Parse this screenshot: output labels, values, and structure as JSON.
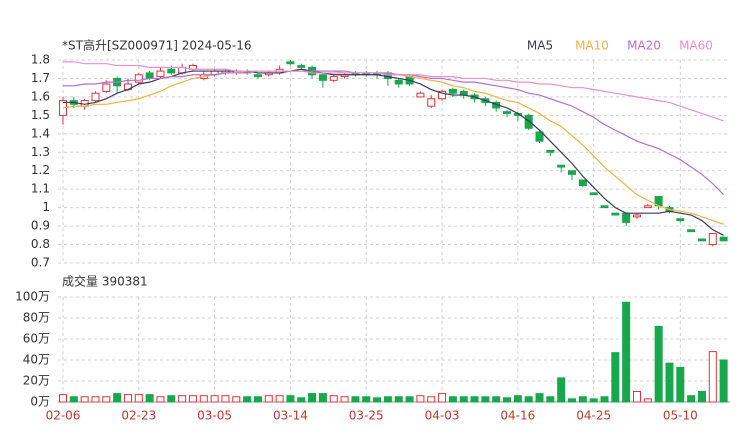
{
  "chart_data": [
    {
      "type": "candlestick",
      "title": "*ST高升[SZ000971] 2024-05-16",
      "categories": [
        "02-06",
        null,
        null,
        null,
        null,
        null,
        null,
        "02-23",
        null,
        null,
        null,
        null,
        null,
        null,
        "03-05",
        null,
        null,
        null,
        null,
        null,
        null,
        "03-14",
        null,
        null,
        null,
        null,
        null,
        null,
        "03-25",
        null,
        null,
        null,
        null,
        null,
        null,
        "04-03",
        null,
        null,
        null,
        null,
        null,
        null,
        "04-16",
        null,
        null,
        null,
        null,
        null,
        null,
        "04-25",
        null,
        null,
        null,
        null,
        null,
        null,
        null,
        "05-10",
        null,
        null,
        null,
        null
      ],
      "open": [
        1.5,
        1.58,
        1.55,
        1.58,
        1.63,
        1.7,
        1.64,
        1.68,
        1.73,
        1.71,
        1.75,
        1.73,
        1.75,
        1.7,
        1.72,
        1.73,
        1.73,
        1.74,
        1.72,
        1.72,
        1.73,
        1.79,
        1.77,
        1.76,
        1.72,
        1.69,
        1.71,
        1.73,
        1.73,
        1.73,
        1.73,
        1.69,
        1.71,
        1.6,
        1.55,
        1.59,
        1.64,
        1.63,
        1.61,
        1.59,
        1.57,
        1.52,
        1.51,
        1.5,
        1.41,
        1.31,
        1.23,
        1.2,
        1.15,
        1.08,
        1.01,
        0.97,
        0.97,
        0.95,
        1.0,
        1.06,
        1.0,
        0.94,
        0.88,
        0.83,
        0.8,
        0.84
      ],
      "high": [
        1.6,
        1.6,
        1.59,
        1.63,
        1.69,
        1.71,
        1.7,
        1.73,
        1.74,
        1.76,
        1.77,
        1.78,
        1.78,
        1.74,
        1.75,
        1.75,
        1.75,
        1.75,
        1.73,
        1.74,
        1.77,
        1.8,
        1.78,
        1.77,
        1.73,
        1.72,
        1.73,
        1.74,
        1.74,
        1.74,
        1.74,
        1.7,
        1.72,
        1.63,
        1.61,
        1.64,
        1.65,
        1.64,
        1.62,
        1.6,
        1.58,
        1.53,
        1.52,
        1.51,
        1.42,
        1.31,
        1.23,
        1.2,
        1.15,
        1.08,
        1.01,
        0.97,
        0.97,
        0.97,
        1.02,
        1.06,
        1.01,
        0.94,
        0.88,
        0.83,
        0.86,
        0.84
      ],
      "low": [
        1.45,
        1.54,
        1.53,
        1.57,
        1.62,
        1.62,
        1.63,
        1.67,
        1.69,
        1.7,
        1.72,
        1.72,
        1.74,
        1.69,
        1.71,
        1.72,
        1.72,
        1.72,
        1.7,
        1.71,
        1.72,
        1.77,
        1.75,
        1.7,
        1.65,
        1.68,
        1.7,
        1.71,
        1.71,
        1.7,
        1.66,
        1.65,
        1.66,
        1.6,
        1.54,
        1.58,
        1.6,
        1.59,
        1.57,
        1.55,
        1.52,
        1.49,
        1.47,
        1.42,
        1.35,
        1.28,
        1.19,
        1.15,
        1.11,
        1.07,
        1.0,
        0.96,
        0.9,
        0.94,
        1.0,
        0.99,
        0.97,
        0.92,
        0.87,
        0.82,
        0.79,
        0.82
      ],
      "close": [
        1.58,
        1.56,
        1.58,
        1.62,
        1.67,
        1.66,
        1.67,
        1.72,
        1.7,
        1.74,
        1.73,
        1.76,
        1.77,
        1.72,
        1.74,
        1.74,
        1.74,
        1.73,
        1.71,
        1.73,
        1.75,
        1.78,
        1.76,
        1.72,
        1.69,
        1.71,
        1.72,
        1.72,
        1.72,
        1.72,
        1.7,
        1.67,
        1.67,
        1.62,
        1.59,
        1.63,
        1.62,
        1.61,
        1.59,
        1.57,
        1.54,
        1.51,
        1.5,
        1.43,
        1.36,
        1.3,
        1.22,
        1.18,
        1.12,
        1.07,
        1.0,
        0.96,
        0.92,
        0.96,
        1.01,
        1.01,
        0.98,
        0.93,
        0.87,
        0.82,
        0.86,
        0.82
      ],
      "up_color": "#e0343c",
      "down_color": "#17a84b",
      "series": [
        {
          "name": "MA5",
          "color": "#3a3a5c",
          "values": [
            1.57,
            1.57,
            1.56,
            1.57,
            1.59,
            1.62,
            1.64,
            1.67,
            1.68,
            1.7,
            1.71,
            1.73,
            1.74,
            1.74,
            1.74,
            1.74,
            1.74,
            1.74,
            1.73,
            1.73,
            1.73,
            1.74,
            1.75,
            1.74,
            1.73,
            1.72,
            1.72,
            1.72,
            1.72,
            1.72,
            1.71,
            1.7,
            1.69,
            1.67,
            1.64,
            1.62,
            1.61,
            1.61,
            1.6,
            1.58,
            1.56,
            1.54,
            1.51,
            1.47,
            1.42,
            1.36,
            1.3,
            1.24,
            1.17,
            1.11,
            1.05,
            1.0,
            0.97,
            0.97,
            0.97,
            0.97,
            0.98,
            0.97,
            0.96,
            0.93,
            0.88,
            0.85
          ]
        },
        {
          "name": "MA10",
          "color": "#f2b33d",
          "values": [
            1.54,
            1.55,
            1.55,
            1.56,
            1.56,
            1.57,
            1.58,
            1.59,
            1.61,
            1.63,
            1.66,
            1.68,
            1.7,
            1.71,
            1.72,
            1.73,
            1.73,
            1.74,
            1.74,
            1.74,
            1.74,
            1.74,
            1.74,
            1.74,
            1.74,
            1.74,
            1.73,
            1.73,
            1.73,
            1.73,
            1.72,
            1.72,
            1.71,
            1.7,
            1.69,
            1.68,
            1.66,
            1.65,
            1.63,
            1.62,
            1.6,
            1.58,
            1.57,
            1.54,
            1.51,
            1.47,
            1.44,
            1.39,
            1.34,
            1.28,
            1.22,
            1.17,
            1.12,
            1.07,
            1.04,
            1.01,
            0.99,
            0.98,
            0.97,
            0.95,
            0.93,
            0.91
          ]
        },
        {
          "name": "MA20",
          "color": "#b46fd6",
          "values": [
            1.66,
            1.66,
            1.67,
            1.67,
            1.68,
            1.68,
            1.69,
            1.69,
            1.7,
            1.7,
            1.71,
            1.71,
            1.72,
            1.72,
            1.72,
            1.73,
            1.73,
            1.73,
            1.74,
            1.74,
            1.74,
            1.74,
            1.74,
            1.74,
            1.74,
            1.74,
            1.74,
            1.73,
            1.73,
            1.73,
            1.73,
            1.72,
            1.72,
            1.71,
            1.7,
            1.7,
            1.69,
            1.68,
            1.68,
            1.67,
            1.66,
            1.65,
            1.64,
            1.62,
            1.61,
            1.59,
            1.57,
            1.55,
            1.52,
            1.49,
            1.45,
            1.42,
            1.39,
            1.36,
            1.34,
            1.32,
            1.29,
            1.26,
            1.22,
            1.18,
            1.13,
            1.07
          ]
        },
        {
          "name": "MA60",
          "color": "#ea8fcf",
          "values": [
            1.79,
            1.79,
            1.78,
            1.78,
            1.78,
            1.77,
            1.77,
            1.77,
            1.76,
            1.76,
            1.76,
            1.76,
            1.75,
            1.75,
            1.75,
            1.75,
            1.74,
            1.74,
            1.74,
            1.74,
            1.74,
            1.74,
            1.74,
            1.73,
            1.73,
            1.73,
            1.73,
            1.73,
            1.73,
            1.73,
            1.72,
            1.72,
            1.72,
            1.72,
            1.71,
            1.71,
            1.71,
            1.7,
            1.7,
            1.7,
            1.69,
            1.69,
            1.68,
            1.68,
            1.67,
            1.67,
            1.66,
            1.65,
            1.65,
            1.64,
            1.63,
            1.62,
            1.61,
            1.6,
            1.59,
            1.58,
            1.57,
            1.55,
            1.53,
            1.51,
            1.49,
            1.47
          ]
        }
      ],
      "ylim": [
        0.7,
        1.8
      ],
      "yticks": [
        0.7,
        0.8,
        0.9,
        1,
        1.1,
        1.2,
        1.3,
        1.4,
        1.5,
        1.6,
        1.7,
        1.8
      ],
      "grid": true
    },
    {
      "type": "bar",
      "title": "成交量 390381",
      "values": [
        7,
        5,
        5,
        5,
        5,
        8,
        7,
        7,
        7,
        5,
        6,
        6,
        6,
        6,
        6,
        6,
        5,
        5,
        5,
        6,
        6,
        6,
        4,
        8,
        8,
        6,
        5,
        5,
        5,
        4,
        5,
        5,
        5,
        6,
        5,
        8,
        5,
        5,
        5,
        5,
        5,
        4,
        6,
        5,
        8,
        5,
        23,
        3,
        5,
        3,
        5,
        47,
        95,
        10,
        3,
        72,
        37,
        33,
        6,
        10,
        48,
        40
      ],
      "ylim": [
        0,
        100
      ],
      "yticks": [
        {
          "value": 0,
          "label": "0万"
        },
        {
          "value": 20,
          "label": "20万"
        },
        {
          "value": 40,
          "label": "40万"
        },
        {
          "value": 60,
          "label": "60万"
        },
        {
          "value": 80,
          "label": "80万"
        },
        {
          "value": 100,
          "label": "100万"
        }
      ],
      "grid": true
    }
  ]
}
